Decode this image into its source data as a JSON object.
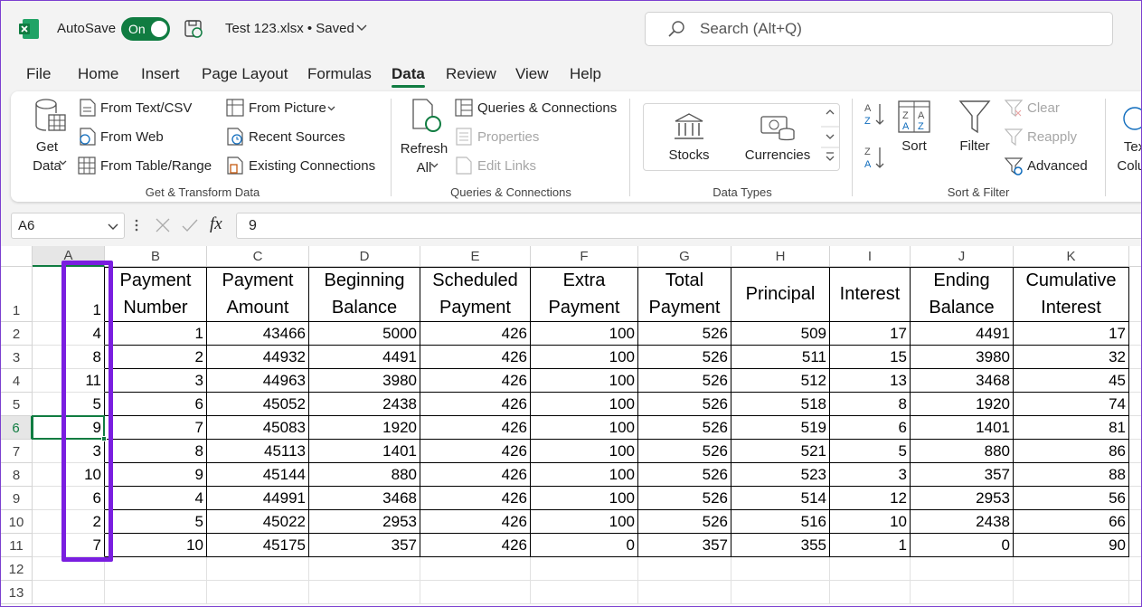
{
  "title_bar": {
    "autosave": "AutoSave",
    "toggle": "On",
    "file": "Test 123.xlsx • Saved",
    "search": "Search (Alt+Q)"
  },
  "tabs": [
    "File",
    "Home",
    "Insert",
    "Page Layout",
    "Formulas",
    "Data",
    "Review",
    "View",
    "Help"
  ],
  "active_tab": "Data",
  "ribbon": {
    "groups": [
      {
        "label": "Get & Transform Data",
        "buttons": [
          "Get Data",
          "From Text/CSV",
          "From Web",
          "From Table/Range",
          "From Picture",
          "Recent Sources",
          "Existing Connections"
        ]
      },
      {
        "label": "Queries & Connections",
        "buttons": [
          "Refresh All",
          "Queries & Connections",
          "Properties",
          "Edit Links"
        ]
      },
      {
        "label": "Data Types",
        "buttons": [
          "Stocks",
          "Currencies"
        ]
      },
      {
        "label": "Sort & Filter",
        "buttons": [
          "Sort",
          "Filter",
          "Clear",
          "Reapply",
          "Advanced"
        ]
      },
      {
        "buttons": [
          "Text to Columns"
        ]
      }
    ]
  },
  "formula_bar": {
    "name_box": "A6",
    "function_label": "fx",
    "content": "9"
  },
  "sheet": {
    "columns": [
      "A",
      "B",
      "C",
      "D",
      "E",
      "F",
      "G",
      "H",
      "I",
      "J",
      "K"
    ],
    "row_headers": [
      1,
      2,
      3,
      4,
      5,
      6,
      7,
      8,
      9,
      10,
      11,
      12,
      13
    ],
    "cells": [
      [
        1,
        "Payment Number",
        "Payment Amount",
        "Beginning Balance",
        "Scheduled Payment",
        "Extra Payment",
        "Total Payment",
        "Principal",
        "Interest",
        "Ending Balance",
        "Cumulative Interest"
      ],
      [
        4,
        1,
        43466,
        5000,
        426,
        100,
        526,
        509,
        17,
        4491,
        17
      ],
      [
        8,
        2,
        44932,
        4491,
        426,
        100,
        526,
        511,
        15,
        3980,
        32
      ],
      [
        11,
        3,
        44963,
        3980,
        426,
        100,
        526,
        512,
        13,
        3468,
        45
      ],
      [
        5,
        6,
        45052,
        2438,
        426,
        100,
        526,
        518,
        8,
        1920,
        74
      ],
      [
        9,
        7,
        45083,
        1920,
        426,
        100,
        526,
        519,
        6,
        1401,
        81
      ],
      [
        3,
        8,
        45113,
        1401,
        426,
        100,
        526,
        521,
        5,
        880,
        86
      ],
      [
        10,
        9,
        45144,
        880,
        426,
        100,
        526,
        523,
        3,
        357,
        88
      ],
      [
        6,
        4,
        44991,
        3468,
        426,
        100,
        526,
        514,
        12,
        2953,
        56
      ],
      [
        2,
        5,
        45022,
        2953,
        426,
        100,
        526,
        516,
        10,
        2438,
        66
      ],
      [
        7,
        10,
        45175,
        357,
        426,
        0,
        357,
        355,
        1,
        0,
        90
      ]
    ]
  }
}
